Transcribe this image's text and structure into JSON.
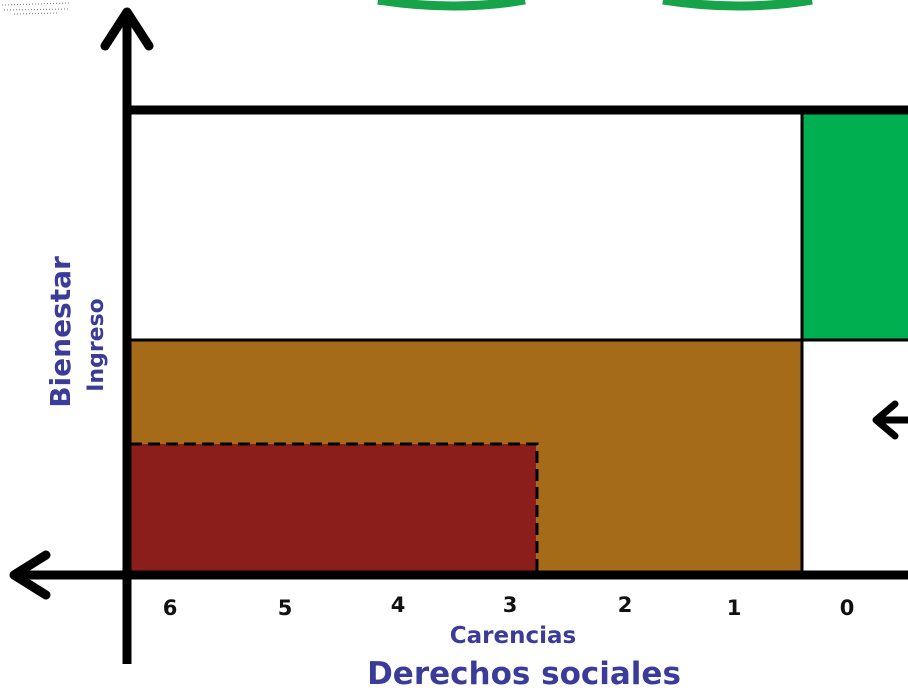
{
  "axes": {
    "y_main_label": "Bienestar",
    "y_sub_label": "Ingreso",
    "x_sub_label": "Carencias",
    "x_main_label": "Derechos sociales"
  },
  "ticks": [
    "6",
    "5",
    "4",
    "3",
    "2",
    "1",
    "0"
  ],
  "colors": {
    "green": "#00b050",
    "brown": "#a56b18",
    "dark_red": "#8b1e1a",
    "label_blue": "#3b3b99",
    "line": "#000000"
  }
}
